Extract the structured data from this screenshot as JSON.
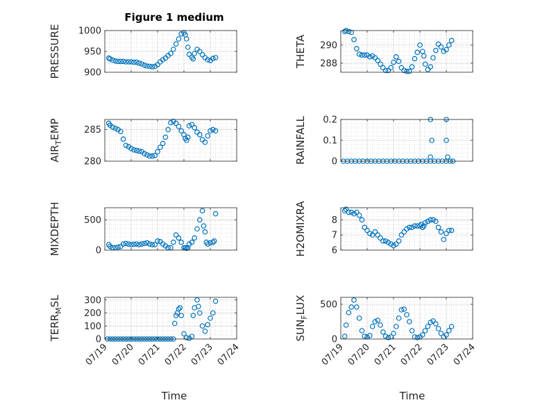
{
  "figure": {
    "title": "Figure 1 medium",
    "marker_color": "#0072BD",
    "xlabel": "Time",
    "x_tick_labels": [
      "07/19",
      "07/20",
      "07/21",
      "07/22",
      "07/23",
      "07/24"
    ]
  },
  "chart_data": [
    {
      "type": "scatter",
      "ylabel": "PRESSURE",
      "ylim": [
        900,
        1000
      ],
      "yticks": [
        900,
        950,
        1000
      ],
      "ytick_labels": [
        "900",
        "950",
        "1000"
      ],
      "xlim": [
        0,
        5
      ],
      "grid": true,
      "x": [
        0.15,
        0.2,
        0.3,
        0.4,
        0.5,
        0.6,
        0.7,
        0.8,
        0.9,
        1.0,
        1.1,
        1.2,
        1.3,
        1.4,
        1.5,
        1.6,
        1.7,
        1.8,
        1.9,
        2.0,
        2.1,
        2.2,
        2.3,
        2.4,
        2.5,
        2.6,
        2.7,
        2.8,
        2.9,
        3.0,
        3.05,
        3.1,
        3.15,
        3.2,
        3.3,
        3.35,
        3.4,
        3.5,
        3.6,
        3.7,
        3.8,
        3.9,
        4.0,
        4.1,
        4.2
      ],
      "y": [
        934,
        932,
        929,
        927,
        926,
        926,
        926,
        925,
        925,
        925,
        924,
        924,
        922,
        920,
        917,
        915,
        914,
        913,
        914,
        918,
        925,
        930,
        934,
        940,
        945,
        955,
        968,
        980,
        992,
        995,
        990,
        980,
        960,
        943,
        936,
        932,
        945,
        955,
        950,
        942,
        935,
        930,
        928,
        933,
        935
      ]
    },
    {
      "type": "scatter",
      "ylabel": "THETA",
      "ylim": [
        287,
        291.6
      ],
      "yticks": [
        288,
        290
      ],
      "ytick_labels": [
        "288",
        "290"
      ],
      "xlim": [
        0,
        5
      ],
      "grid": true,
      "x": [
        0.15,
        0.2,
        0.3,
        0.4,
        0.5,
        0.6,
        0.7,
        0.8,
        0.9,
        1.0,
        1.1,
        1.2,
        1.3,
        1.4,
        1.5,
        1.6,
        1.7,
        1.8,
        1.9,
        2.0,
        2.1,
        2.2,
        2.3,
        2.4,
        2.5,
        2.6,
        2.7,
        2.8,
        2.9,
        3.0,
        3.1,
        3.15,
        3.2,
        3.3,
        3.4,
        3.5,
        3.6,
        3.7,
        3.8,
        3.9,
        4.0,
        4.1,
        4.2
      ],
      "y": [
        291.5,
        291.6,
        291.5,
        291.4,
        290.6,
        289.6,
        289.0,
        288.9,
        288.9,
        288.9,
        288.7,
        288.8,
        288.6,
        288.3,
        287.9,
        287.5,
        287.2,
        287.2,
        287.5,
        288.1,
        288.7,
        288.2,
        287.5,
        287.2,
        287.1,
        287.1,
        287.6,
        288.5,
        289.2,
        290.0,
        289.3,
        288.8,
        287.9,
        287.3,
        287.6,
        288.6,
        289.4,
        290.1,
        289.8,
        289.3,
        289.5,
        290.0,
        290.5
      ]
    },
    {
      "type": "scatter",
      "ylabel": "AIR_TEMP",
      "ylim": [
        280,
        286.6
      ],
      "yticks": [
        280,
        285
      ],
      "ytick_labels": [
        "280",
        "285"
      ],
      "xlim": [
        0,
        5
      ],
      "grid": true,
      "x": [
        0.15,
        0.2,
        0.3,
        0.4,
        0.5,
        0.6,
        0.7,
        0.8,
        0.9,
        1.0,
        1.1,
        1.2,
        1.3,
        1.4,
        1.5,
        1.6,
        1.7,
        1.8,
        1.9,
        2.0,
        2.1,
        2.2,
        2.3,
        2.4,
        2.5,
        2.6,
        2.7,
        2.8,
        2.9,
        3.0,
        3.05,
        3.1,
        3.15,
        3.2,
        3.3,
        3.4,
        3.5,
        3.6,
        3.7,
        3.8,
        3.9,
        4.0,
        4.1,
        4.2
      ],
      "y": [
        286.0,
        285.7,
        285.4,
        285.2,
        285.0,
        284.7,
        283.5,
        282.5,
        282.3,
        282.0,
        281.8,
        281.7,
        281.6,
        281.5,
        281.2,
        281.0,
        280.8,
        280.8,
        280.9,
        281.5,
        282.2,
        282.8,
        283.8,
        285.0,
        286.1,
        286.3,
        286.0,
        285.5,
        284.8,
        284.2,
        283.6,
        283.3,
        283.8,
        285.6,
        285.8,
        285.3,
        284.6,
        284.2,
        283.4,
        283.0,
        284.0,
        284.8,
        285.0,
        284.8
      ]
    },
    {
      "type": "scatter",
      "ylabel": "RAINFALL",
      "ylim": [
        0,
        0.2
      ],
      "yticks": [
        0,
        0.1,
        0.2
      ],
      "ytick_labels": [
        "0",
        "0.1",
        "0.2"
      ],
      "xlim": [
        0,
        5
      ],
      "grid": true,
      "x": [
        0.1,
        0.25,
        0.4,
        0.55,
        0.7,
        0.85,
        1.0,
        1.15,
        1.3,
        1.45,
        1.6,
        1.75,
        1.9,
        2.05,
        2.2,
        2.35,
        2.5,
        2.65,
        2.8,
        2.95,
        3.1,
        3.25,
        3.4,
        3.55,
        3.7,
        3.85,
        4.0,
        4.15,
        4.25,
        3.4,
        3.45,
        3.4,
        4.0,
        4.0,
        4.05
      ],
      "y": [
        0,
        0,
        0,
        0,
        0,
        0,
        0,
        0,
        0,
        0,
        0,
        0,
        0,
        0,
        0,
        0,
        0,
        0,
        0,
        0,
        0,
        0,
        0,
        0,
        0,
        0,
        0,
        0,
        0,
        0.2,
        0.1,
        0.02,
        0.2,
        0.1,
        0.02
      ]
    },
    {
      "type": "scatter",
      "ylabel": "MIXDEPTH",
      "ylim": [
        0,
        700
      ],
      "yticks": [
        0,
        500
      ],
      "ytick_labels": [
        "0",
        "500"
      ],
      "xlim": [
        0,
        5
      ],
      "grid": true,
      "x": [
        0.15,
        0.2,
        0.3,
        0.4,
        0.5,
        0.6,
        0.7,
        0.8,
        0.9,
        1.0,
        1.1,
        1.2,
        1.3,
        1.4,
        1.5,
        1.6,
        1.7,
        1.8,
        1.9,
        2.0,
        2.1,
        2.2,
        2.3,
        2.4,
        2.5,
        2.6,
        2.7,
        2.8,
        2.9,
        3.0,
        3.05,
        3.1,
        3.15,
        3.2,
        3.3,
        3.4,
        3.5,
        3.6,
        3.7,
        3.75,
        3.8,
        3.85,
        3.9,
        4.0,
        4.1,
        4.15,
        4.2
      ],
      "y": [
        90,
        60,
        40,
        40,
        50,
        60,
        100,
        110,
        100,
        90,
        95,
        100,
        90,
        100,
        110,
        120,
        100,
        90,
        90,
        150,
        140,
        100,
        70,
        40,
        40,
        130,
        250,
        200,
        130,
        40,
        40,
        30,
        40,
        100,
        130,
        200,
        350,
        500,
        650,
        400,
        300,
        130,
        100,
        120,
        130,
        150,
        600
      ]
    },
    {
      "type": "scatter",
      "ylabel": "H2OMIXRA",
      "ylim": [
        6,
        8.8
      ],
      "yticks": [
        6,
        7,
        8
      ],
      "ytick_labels": [
        "6",
        "7",
        "8"
      ],
      "xlim": [
        0,
        5
      ],
      "grid": true,
      "x": [
        0.15,
        0.2,
        0.3,
        0.4,
        0.5,
        0.6,
        0.7,
        0.8,
        0.9,
        1.0,
        1.1,
        1.2,
        1.3,
        1.4,
        1.5,
        1.6,
        1.7,
        1.8,
        1.9,
        2.0,
        2.1,
        2.2,
        2.3,
        2.4,
        2.5,
        2.6,
        2.7,
        2.8,
        2.9,
        3.0,
        3.05,
        3.1,
        3.15,
        3.2,
        3.3,
        3.4,
        3.5,
        3.6,
        3.7,
        3.8,
        3.9,
        4.0,
        4.1,
        4.2
      ],
      "y": [
        8.6,
        8.7,
        8.5,
        8.5,
        8.4,
        8.5,
        8.3,
        8.0,
        7.5,
        7.3,
        7.1,
        7.0,
        7.2,
        7.0,
        6.8,
        6.6,
        6.6,
        6.5,
        6.4,
        6.3,
        6.4,
        6.6,
        7.0,
        7.2,
        7.4,
        7.5,
        7.5,
        7.6,
        7.6,
        7.6,
        7.7,
        7.5,
        7.6,
        7.8,
        7.9,
        8.0,
        8.0,
        7.9,
        7.5,
        7.2,
        6.7,
        7.1,
        7.3,
        7.3
      ]
    },
    {
      "type": "scatter",
      "ylabel": "TERR_MSL",
      "ylim": [
        0,
        320
      ],
      "yticks": [
        0,
        100,
        200,
        300
      ],
      "ytick_labels": [
        "0",
        "100",
        "200",
        "300"
      ],
      "xlim": [
        0,
        5
      ],
      "grid": true,
      "x": [
        0.1,
        0.2,
        0.3,
        0.4,
        0.5,
        0.6,
        0.7,
        0.8,
        0.9,
        1.0,
        1.1,
        1.2,
        1.3,
        1.4,
        1.5,
        1.6,
        1.7,
        1.8,
        1.9,
        2.0,
        2.1,
        2.2,
        2.3,
        2.4,
        2.5,
        2.6,
        2.65,
        2.7,
        2.75,
        2.8,
        2.85,
        2.9,
        3.0,
        3.1,
        3.2,
        3.3,
        3.35,
        3.4,
        3.5,
        3.55,
        3.6,
        3.7,
        3.8,
        3.9,
        4.0,
        4.1,
        4.2
      ],
      "y": [
        0,
        0,
        0,
        0,
        0,
        0,
        0,
        0,
        0,
        0,
        0,
        0,
        0,
        0,
        0,
        0,
        0,
        0,
        0,
        0,
        0,
        0,
        0,
        0,
        0,
        0,
        120,
        180,
        200,
        230,
        240,
        180,
        40,
        10,
        5,
        20,
        180,
        240,
        300,
        250,
        200,
        100,
        60,
        110,
        160,
        200,
        290
      ]
    },
    {
      "type": "scatter",
      "ylabel": "SUN_FLUX",
      "ylim": [
        0,
        600
      ],
      "yticks": [
        0,
        500
      ],
      "ytick_labels": [
        "0",
        "500"
      ],
      "xlim": [
        0,
        5
      ],
      "grid": true,
      "x": [
        0.15,
        0.2,
        0.3,
        0.4,
        0.5,
        0.6,
        0.7,
        0.8,
        0.9,
        1.0,
        1.1,
        1.2,
        1.3,
        1.4,
        1.5,
        1.6,
        1.7,
        1.8,
        1.9,
        2.0,
        2.1,
        2.2,
        2.3,
        2.4,
        2.5,
        2.6,
        2.7,
        2.8,
        2.9,
        3.0,
        3.1,
        3.2,
        3.3,
        3.4,
        3.5,
        3.6,
        3.7,
        3.8,
        3.9,
        4.0,
        4.1,
        4.2
      ],
      "y": [
        40,
        200,
        380,
        460,
        560,
        460,
        300,
        120,
        40,
        30,
        50,
        180,
        250,
        270,
        200,
        100,
        40,
        20,
        30,
        80,
        180,
        300,
        420,
        430,
        350,
        250,
        120,
        30,
        20,
        30,
        60,
        120,
        180,
        240,
        260,
        220,
        150,
        80,
        30,
        60,
        120,
        180
      ]
    }
  ]
}
